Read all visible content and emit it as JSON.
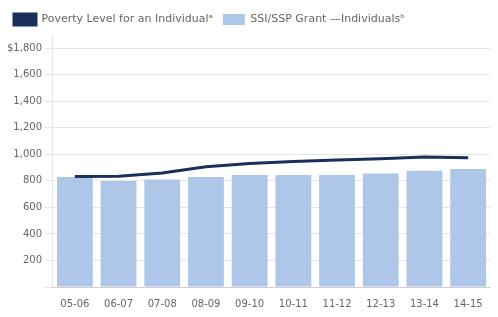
{
  "chart_data": {
    "type": "bar",
    "categories": [
      "05-06",
      "06-07",
      "07-08",
      "08-09",
      "09-10",
      "10-11",
      "11-12",
      "12-13",
      "13-14",
      "14-15"
    ],
    "series": [
      {
        "name": "Poverty Level for an Individualᵃ",
        "type": "line",
        "color": "#1a2f5a",
        "values": [
          833,
          835,
          860,
          906,
          932,
          946,
          958,
          967,
          980,
          975
        ]
      },
      {
        "name": "SSI/SSP Grant —Individualsᵇ",
        "type": "bar",
        "color": "#aec6e8",
        "values": [
          830,
          800,
          810,
          830,
          845,
          845,
          845,
          855,
          877,
          890
        ]
      }
    ],
    "ylim": [
      0,
      1900
    ],
    "yticks": [
      {
        "value": 0,
        "label": ""
      },
      200,
      400,
      600,
      800,
      {
        "value": 1000,
        "label": "1,000"
      },
      {
        "value": 1200,
        "label": "1,200"
      },
      {
        "value": 1400,
        "label": "1,400"
      },
      {
        "value": 1600,
        "label": "1,600"
      },
      {
        "value": 1800,
        "label": "$1,800"
      }
    ],
    "grid": true,
    "legend": "upper left"
  }
}
